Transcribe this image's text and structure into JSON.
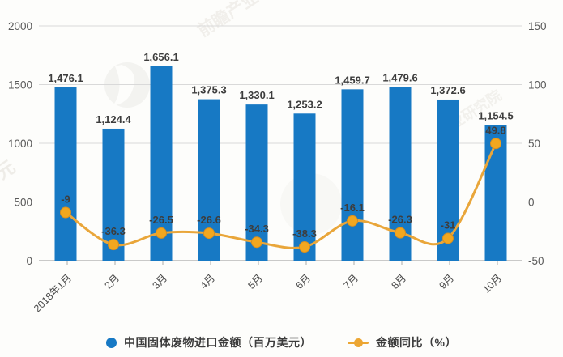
{
  "watermark": {
    "brand_text": "前瞻产业研究院",
    "partial_text": "产业研究院",
    "edge_glyph": "元"
  },
  "legend": {
    "items": [
      {
        "label": "中国固体废物进口金额（百万美元）",
        "marker": "circle",
        "color": "#1779c4"
      },
      {
        "label": "金额同比（%）",
        "marker": "line-dot",
        "color": "#eca633"
      }
    ]
  },
  "chart_data": {
    "type": "bar",
    "subtype": "bar+line combo, dual y-axis",
    "categories": [
      "2018年1月",
      "2月",
      "3月",
      "4月",
      "5月",
      "6月",
      "7月",
      "8月",
      "9月",
      "10月"
    ],
    "series": [
      {
        "name": "中国固体废物进口金额（百万美元）",
        "type": "bar",
        "axis": "left",
        "color": "#1779c4",
        "values": [
          1476.1,
          1124.4,
          1656.1,
          1375.3,
          1330.1,
          1253.2,
          1459.7,
          1479.6,
          1372.6,
          1154.5
        ],
        "labels": [
          "1,476.1",
          "1,124.4",
          "1,656.1",
          "1,375.3",
          "1,330.1",
          "1,253.2",
          "1,459.7",
          "1,479.6",
          "1,372.6",
          "1,154.5"
        ]
      },
      {
        "name": "金额同比（%）",
        "type": "line",
        "axis": "right",
        "color": "#e9a63a",
        "point_color": "#f2a71f",
        "values": [
          -9,
          -36.3,
          -26.5,
          -26.6,
          -34.3,
          -38.3,
          -16.1,
          -26.3,
          -31,
          49.8
        ],
        "labels": [
          "-9",
          "-36.3",
          "-26.5",
          "-26.6",
          "-34.3",
          "-38.3",
          "-16.1",
          "-26.3",
          "-31",
          "49.8"
        ]
      }
    ],
    "left_axis": {
      "min": 0,
      "max": 2000,
      "ticks": [
        0,
        500,
        1000,
        1500,
        2000
      ]
    },
    "right_axis": {
      "min": -50,
      "max": 150,
      "ticks": [
        -50,
        0,
        50,
        100,
        150
      ]
    },
    "grid": true,
    "legend_position": "bottom",
    "title": "",
    "xlabel": "",
    "ylabel": ""
  },
  "style": {
    "grid_color": "#d9d9d9",
    "axis_line_color": "#aaaaaa",
    "tick_label_color": "#595959",
    "value_label_color": "#3d3d3d",
    "x_label_color": "#4a4a4a",
    "watermark_color": "#b3a99b"
  }
}
